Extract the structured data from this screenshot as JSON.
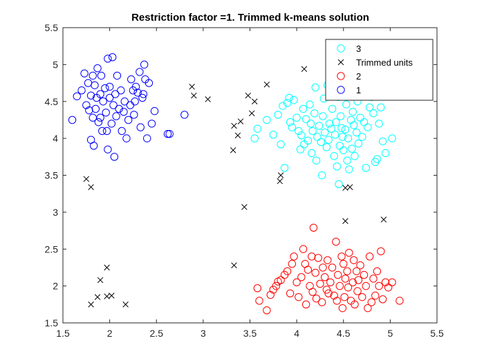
{
  "chart_data": {
    "type": "scatter",
    "title": "Restriction factor =1. Trimmed k-means solution",
    "xlabel": "",
    "ylabel": "",
    "xlim": [
      1.5,
      5.5
    ],
    "ylim": [
      1.5,
      5.5
    ],
    "xticks": [
      "1.5",
      "2",
      "2.5",
      "3",
      "3.5",
      "4",
      "4.5",
      "5",
      "5.5"
    ],
    "yticks": [
      "1.5",
      "2",
      "2.5",
      "3",
      "3.5",
      "4",
      "4.5",
      "5",
      "5.5"
    ],
    "grid": false,
    "legend_position": "top-right",
    "legend": [
      {
        "label": "3",
        "color": "#00ffff",
        "marker": "circle"
      },
      {
        "label": "Trimmed units",
        "color": "#000000",
        "marker": "x"
      },
      {
        "label": "2",
        "color": "#ff0000",
        "marker": "circle"
      },
      {
        "label": "1",
        "color": "#0000ff",
        "marker": "circle"
      }
    ],
    "series": [
      {
        "name": "3",
        "color": "#00ffff",
        "marker": "circle",
        "points": [
          [
            3.55,
            4.0
          ],
          [
            3.58,
            4.13
          ],
          [
            3.68,
            4.25
          ],
          [
            3.75,
            4.05
          ],
          [
            3.8,
            4.32
          ],
          [
            3.83,
            3.92
          ],
          [
            3.85,
            4.44
          ],
          [
            3.87,
            3.6
          ],
          [
            3.9,
            4.48
          ],
          [
            3.92,
            4.55
          ],
          [
            3.93,
            4.22
          ],
          [
            3.95,
            4.15
          ],
          [
            3.97,
            4.52
          ],
          [
            4.0,
            4.28
          ],
          [
            4.02,
            4.1
          ],
          [
            4.04,
            3.85
          ],
          [
            4.05,
            4.04
          ],
          [
            4.07,
            4.4
          ],
          [
            4.08,
            3.92
          ],
          [
            4.1,
            4.26
          ],
          [
            4.12,
            3.97
          ],
          [
            4.14,
            4.46
          ],
          [
            4.15,
            4.2
          ],
          [
            4.16,
            3.8
          ],
          [
            4.17,
            4.1
          ],
          [
            4.19,
            4.34
          ],
          [
            4.2,
            4.69
          ],
          [
            4.21,
            3.7
          ],
          [
            4.22,
            4.02
          ],
          [
            4.24,
            4.17
          ],
          [
            4.26,
            3.95
          ],
          [
            4.27,
            3.5
          ],
          [
            4.28,
            4.3
          ],
          [
            4.29,
            4.54
          ],
          [
            4.3,
            4.08
          ],
          [
            4.32,
            3.88
          ],
          [
            4.33,
            4.72
          ],
          [
            4.34,
            3.98
          ],
          [
            4.35,
            4.2
          ],
          [
            4.37,
            4.13
          ],
          [
            4.38,
            4.4
          ],
          [
            4.4,
            3.76
          ],
          [
            4.41,
            4.05
          ],
          [
            4.42,
            4.22
          ],
          [
            4.43,
            3.62
          ],
          [
            4.44,
            4.56
          ],
          [
            4.45,
            3.38
          ],
          [
            4.46,
            3.9
          ],
          [
            4.47,
            4.3
          ],
          [
            4.48,
            4.14
          ],
          [
            4.49,
            4.02
          ],
          [
            4.5,
            3.84
          ],
          [
            4.51,
            4.62
          ],
          [
            4.52,
            4.12
          ],
          [
            4.53,
            4.46
          ],
          [
            4.54,
            3.7
          ],
          [
            4.55,
            4.0
          ],
          [
            4.56,
            3.58
          ],
          [
            4.58,
            4.25
          ],
          [
            4.59,
            3.86
          ],
          [
            4.6,
            4.36
          ],
          [
            4.61,
            4.18
          ],
          [
            4.62,
            3.76
          ],
          [
            4.64,
            4.08
          ],
          [
            4.65,
            4.5
          ],
          [
            4.66,
            3.93
          ],
          [
            4.68,
            4.28
          ],
          [
            4.7,
            4.02
          ],
          [
            4.72,
            4.22
          ],
          [
            4.74,
            3.6
          ],
          [
            4.76,
            4.15
          ],
          [
            4.78,
            4.42
          ],
          [
            4.8,
            4.56
          ],
          [
            4.82,
            4.34
          ],
          [
            4.84,
            3.68
          ],
          [
            4.86,
            3.72
          ],
          [
            4.88,
            4.2
          ],
          [
            4.9,
            4.42
          ],
          [
            4.92,
            3.96
          ],
          [
            4.95,
            3.8
          ],
          [
            5.02,
            4.0
          ]
        ]
      },
      {
        "name": "Trimmed units",
        "color": "#000000",
        "marker": "x",
        "points": [
          [
            1.75,
            3.45
          ],
          [
            1.8,
            3.34
          ],
          [
            1.8,
            1.75
          ],
          [
            1.87,
            1.85
          ],
          [
            1.9,
            2.08
          ],
          [
            1.97,
            2.25
          ],
          [
            1.97,
            1.86
          ],
          [
            2.02,
            1.87
          ],
          [
            2.17,
            1.75
          ],
          [
            2.88,
            4.7
          ],
          [
            2.9,
            4.58
          ],
          [
            3.05,
            4.53
          ],
          [
            3.32,
            3.84
          ],
          [
            3.33,
            4.17
          ],
          [
            3.33,
            2.28
          ],
          [
            3.37,
            4.04
          ],
          [
            3.4,
            4.23
          ],
          [
            3.44,
            3.07
          ],
          [
            3.48,
            4.58
          ],
          [
            3.52,
            4.34
          ],
          [
            3.55,
            4.5
          ],
          [
            3.68,
            4.73
          ],
          [
            3.82,
            3.42
          ],
          [
            3.83,
            3.5
          ],
          [
            4.08,
            4.94
          ],
          [
            4.52,
            3.33
          ],
          [
            4.57,
            3.34
          ],
          [
            4.52,
            2.88
          ],
          [
            4.93,
            2.9
          ]
        ]
      },
      {
        "name": "2",
        "color": "#ff0000",
        "marker": "circle",
        "points": [
          [
            3.58,
            1.97
          ],
          [
            3.6,
            1.8
          ],
          [
            3.68,
            1.67
          ],
          [
            3.72,
            1.88
          ],
          [
            3.75,
            1.95
          ],
          [
            3.78,
            2.0
          ],
          [
            3.8,
            2.06
          ],
          [
            3.83,
            2.08
          ],
          [
            3.87,
            2.15
          ],
          [
            3.9,
            2.2
          ],
          [
            3.93,
            1.9
          ],
          [
            3.95,
            2.3
          ],
          [
            3.97,
            2.4
          ],
          [
            4.0,
            2.05
          ],
          [
            4.02,
            1.85
          ],
          [
            4.05,
            2.12
          ],
          [
            4.07,
            2.5
          ],
          [
            4.09,
            2.3
          ],
          [
            4.1,
            1.75
          ],
          [
            4.12,
            2.22
          ],
          [
            4.14,
            2.0
          ],
          [
            4.16,
            2.4
          ],
          [
            4.17,
            1.92
          ],
          [
            4.18,
            2.79
          ],
          [
            4.2,
            2.18
          ],
          [
            4.21,
            1.83
          ],
          [
            4.23,
            2.38
          ],
          [
            4.25,
            2.03
          ],
          [
            4.27,
            1.78
          ],
          [
            4.28,
            2.25
          ],
          [
            4.3,
            2.12
          ],
          [
            4.32,
            1.95
          ],
          [
            4.33,
            2.35
          ],
          [
            4.34,
            1.9
          ],
          [
            4.36,
            2.05
          ],
          [
            4.38,
            2.25
          ],
          [
            4.4,
            1.87
          ],
          [
            4.42,
            2.6
          ],
          [
            4.43,
            1.8
          ],
          [
            4.44,
            2.15
          ],
          [
            4.46,
            2.0
          ],
          [
            4.48,
            2.4
          ],
          [
            4.49,
            1.7
          ],
          [
            4.5,
            2.3
          ],
          [
            4.51,
            1.85
          ],
          [
            4.52,
            2.1
          ],
          [
            4.54,
            2.2
          ],
          [
            4.55,
            1.98
          ],
          [
            4.56,
            2.45
          ],
          [
            4.58,
            1.8
          ],
          [
            4.6,
            2.05
          ],
          [
            4.61,
            2.35
          ],
          [
            4.62,
            1.75
          ],
          [
            4.64,
            2.2
          ],
          [
            4.65,
            1.93
          ],
          [
            4.66,
            2.08
          ],
          [
            4.68,
            2.28
          ],
          [
            4.7,
            1.85
          ],
          [
            4.72,
            2.15
          ],
          [
            4.74,
            2.0
          ],
          [
            4.76,
            1.7
          ],
          [
            4.78,
            2.4
          ],
          [
            4.8,
            1.78
          ],
          [
            4.82,
            2.1
          ],
          [
            4.84,
            1.87
          ],
          [
            4.86,
            2.2
          ],
          [
            4.88,
            2.0
          ],
          [
            4.9,
            2.47
          ],
          [
            4.92,
            1.82
          ],
          [
            4.95,
            2.05
          ],
          [
            4.98,
            1.98
          ],
          [
            5.02,
            2.05
          ],
          [
            5.1,
            1.8
          ]
        ]
      },
      {
        "name": "1",
        "color": "#0000ff",
        "marker": "circle",
        "points": [
          [
            1.6,
            4.25
          ],
          [
            1.65,
            4.57
          ],
          [
            1.7,
            4.65
          ],
          [
            1.73,
            4.88
          ],
          [
            1.75,
            4.45
          ],
          [
            1.77,
            4.75
          ],
          [
            1.78,
            4.38
          ],
          [
            1.8,
            3.98
          ],
          [
            1.8,
            4.58
          ],
          [
            1.82,
            4.85
          ],
          [
            1.82,
            4.28
          ],
          [
            1.83,
            3.9
          ],
          [
            1.84,
            4.72
          ],
          [
            1.85,
            4.4
          ],
          [
            1.86,
            4.55
          ],
          [
            1.87,
            4.95
          ],
          [
            1.88,
            4.22
          ],
          [
            1.9,
            4.6
          ],
          [
            1.9,
            4.28
          ],
          [
            1.91,
            4.85
          ],
          [
            1.92,
            4.1
          ],
          [
            1.93,
            4.5
          ],
          [
            1.95,
            4.68
          ],
          [
            1.96,
            4.35
          ],
          [
            1.97,
            4.1
          ],
          [
            1.98,
            5.08
          ],
          [
            1.98,
            3.85
          ],
          [
            2.0,
            4.55
          ],
          [
            2.0,
            4.7
          ],
          [
            2.02,
            4.2
          ],
          [
            2.03,
            5.1
          ],
          [
            2.04,
            4.45
          ],
          [
            2.05,
            3.75
          ],
          [
            2.06,
            4.6
          ],
          [
            2.07,
            4.3
          ],
          [
            2.08,
            4.85
          ],
          [
            2.1,
            4.4
          ],
          [
            2.12,
            4.65
          ],
          [
            2.13,
            4.1
          ],
          [
            2.15,
            4.36
          ],
          [
            2.16,
            4.5
          ],
          [
            2.18,
            4.0
          ],
          [
            2.2,
            4.25
          ],
          [
            2.22,
            4.45
          ],
          [
            2.23,
            4.8
          ],
          [
            2.25,
            4.65
          ],
          [
            2.26,
            4.32
          ],
          [
            2.27,
            4.5
          ],
          [
            2.28,
            4.7
          ],
          [
            2.3,
            4.62
          ],
          [
            2.32,
            4.9
          ],
          [
            2.33,
            4.15
          ],
          [
            2.35,
            4.55
          ],
          [
            2.36,
            4.6
          ],
          [
            2.37,
            5.0
          ],
          [
            2.38,
            4.8
          ],
          [
            2.4,
            4.0
          ],
          [
            2.42,
            4.75
          ],
          [
            2.45,
            4.2
          ],
          [
            2.48,
            4.37
          ],
          [
            2.62,
            4.06
          ],
          [
            2.64,
            4.06
          ],
          [
            2.8,
            4.32
          ]
        ]
      }
    ]
  }
}
